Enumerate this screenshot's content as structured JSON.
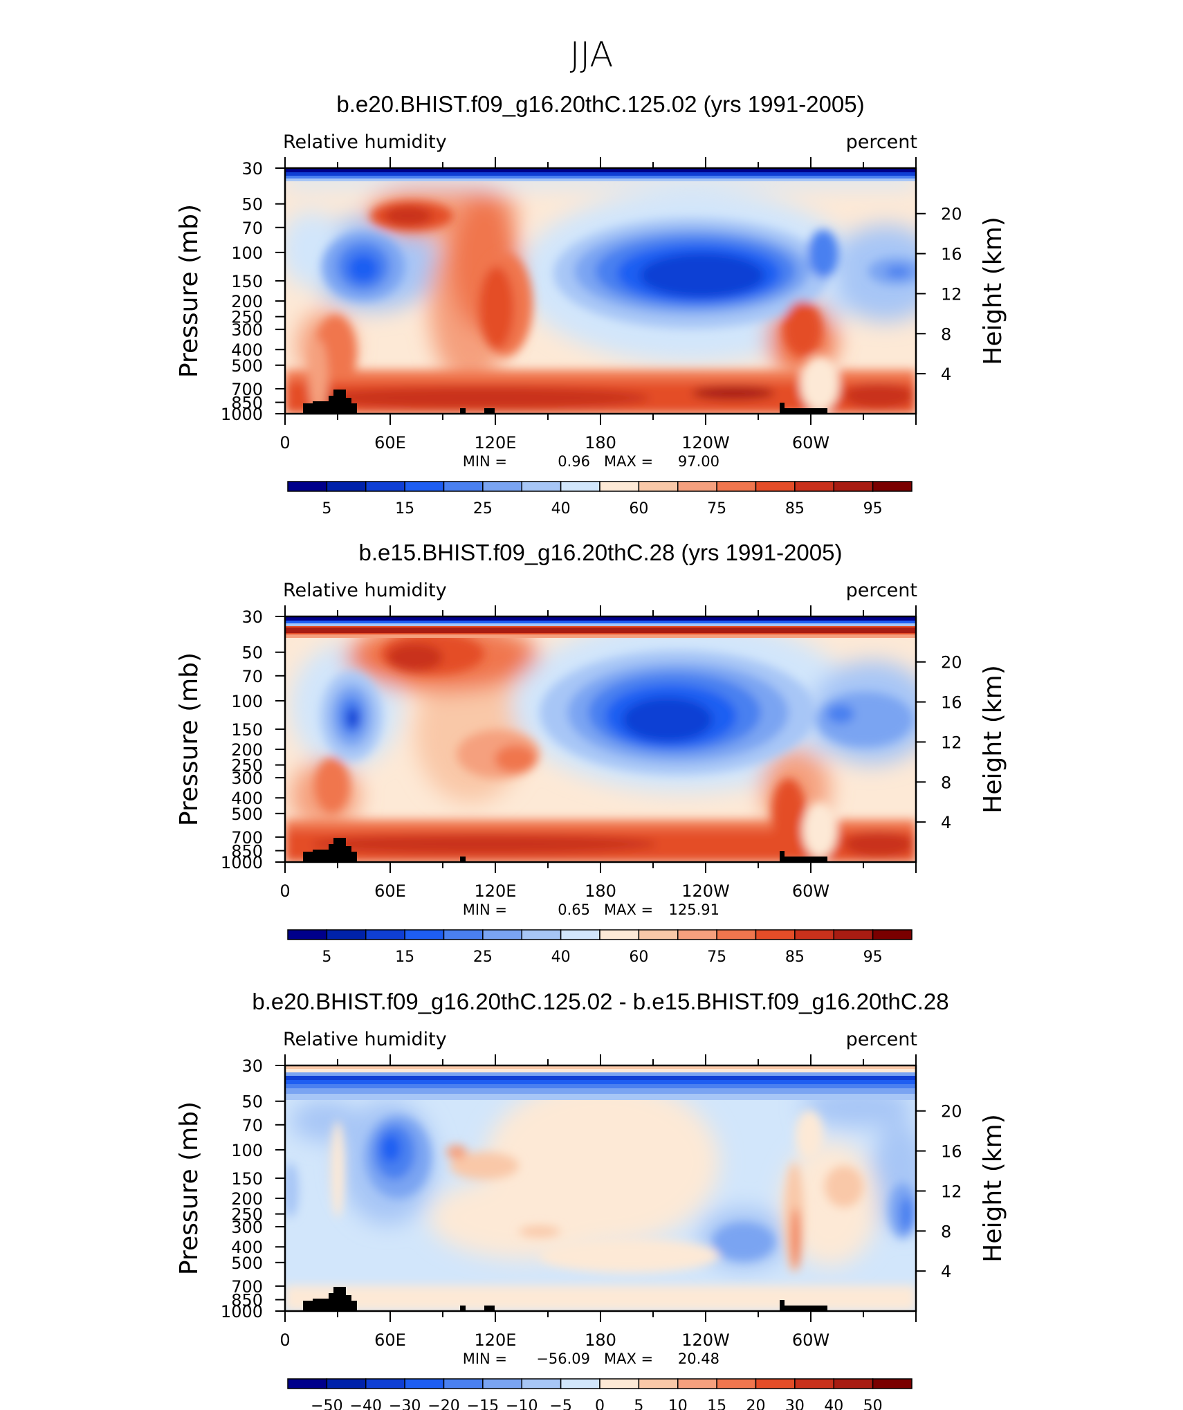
{
  "figure_title": "JJA",
  "chart_data": [
    {
      "type": "heatmap",
      "title": "b.e20.BHIST.f09_g16.20thC.125.02 (yrs 1991-2005)",
      "variable": "Relative humidity",
      "units": "percent",
      "ylabel": "Pressure (mb)",
      "ylabel_right": "Height (km)",
      "x_ticks": [
        "0",
        "60E",
        "120E",
        "180",
        "120W",
        "60W"
      ],
      "y_ticks": [
        "30",
        "50",
        "70",
        "100",
        "150",
        "200",
        "250",
        "300",
        "400",
        "500",
        "700",
        "850",
        "1000"
      ],
      "height_ticks": [
        "20",
        "16",
        "12",
        "8",
        "4"
      ],
      "min_label": "MIN =",
      "min_value": "0.96",
      "max_label": "MAX =",
      "max_value": "97.00",
      "colorbar_labels": [
        "5",
        "15",
        "25",
        "40",
        "60",
        "75",
        "85",
        "95"
      ],
      "colors": [
        "#00008b",
        "#0022aa",
        "#0f3fd4",
        "#1e5ef2",
        "#4a80f0",
        "#7aa4f2",
        "#a7c6f6",
        "#d2e6fb",
        "#fde9d6",
        "#f9c8a8",
        "#f5a07e",
        "#f0764e",
        "#e44d28",
        "#c9311c",
        "#a81c12",
        "#7a0000"
      ]
    },
    {
      "type": "heatmap",
      "title": "b.e15.BHIST.f09_g16.20thC.28 (yrs 1991-2005)",
      "variable": "Relative humidity",
      "units": "percent",
      "ylabel": "Pressure (mb)",
      "ylabel_right": "Height (km)",
      "x_ticks": [
        "0",
        "60E",
        "120E",
        "180",
        "120W",
        "60W"
      ],
      "y_ticks": [
        "30",
        "50",
        "70",
        "100",
        "150",
        "200",
        "250",
        "300",
        "400",
        "500",
        "700",
        "850",
        "1000"
      ],
      "height_ticks": [
        "20",
        "16",
        "12",
        "8",
        "4"
      ],
      "min_label": "MIN =",
      "min_value": "0.65",
      "max_label": "MAX =",
      "max_value": "125.91",
      "colorbar_labels": [
        "5",
        "15",
        "25",
        "40",
        "60",
        "75",
        "85",
        "95"
      ],
      "colors": [
        "#00008b",
        "#0022aa",
        "#0f3fd4",
        "#1e5ef2",
        "#4a80f0",
        "#7aa4f2",
        "#a7c6f6",
        "#d2e6fb",
        "#fde9d6",
        "#f9c8a8",
        "#f5a07e",
        "#f0764e",
        "#e44d28",
        "#c9311c",
        "#a81c12",
        "#7a0000"
      ]
    },
    {
      "type": "heatmap",
      "title": "b.e20.BHIST.f09_g16.20thC.125.02 - b.e15.BHIST.f09_g16.20thC.28",
      "variable": "Relative humidity",
      "units": "percent",
      "ylabel": "Pressure (mb)",
      "ylabel_right": "Height (km)",
      "x_ticks": [
        "0",
        "60E",
        "120E",
        "180",
        "120W",
        "60W"
      ],
      "y_ticks": [
        "30",
        "50",
        "70",
        "100",
        "150",
        "200",
        "250",
        "300",
        "400",
        "500",
        "700",
        "850",
        "1000"
      ],
      "height_ticks": [
        "20",
        "16",
        "12",
        "8",
        "4"
      ],
      "min_label": "MIN =",
      "min_value": "−56.09",
      "max_label": "MAX =",
      "max_value": "20.48",
      "colorbar_labels": [
        "−50",
        "−40",
        "−30",
        "−20",
        "−15",
        "−10",
        "−5",
        "0",
        "5",
        "10",
        "15",
        "20",
        "30",
        "40",
        "50"
      ],
      "colors": [
        "#00008b",
        "#0022aa",
        "#0f3fd4",
        "#1e5ef2",
        "#4a80f0",
        "#7aa4f2",
        "#a7c6f6",
        "#d2e6fb",
        "#fde9d6",
        "#f9c8a8",
        "#f5a07e",
        "#f0764e",
        "#e44d28",
        "#c9311c",
        "#a81c12",
        "#7a0000"
      ]
    }
  ]
}
